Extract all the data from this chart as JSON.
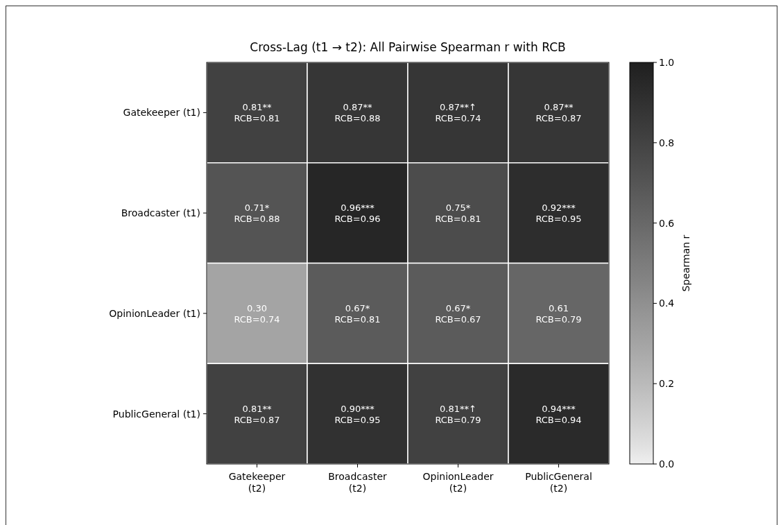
{
  "chart_data": {
    "type": "heatmap",
    "title": "Cross-Lag (t1 → t2): All Pairwise Spearman r with RCB",
    "categories": [
      "Gatekeeper\n(t2)",
      "Broadcaster\n(t2)",
      "OpinionLeader\n(t2)",
      "PublicGeneral\n(t2)"
    ],
    "y_categories": [
      "Gatekeeper (t1)",
      "Broadcaster (t1)",
      "OpinionLeader (t1)",
      "PublicGeneral (t1)"
    ],
    "cells": [
      [
        0.81,
        0.87,
        0.87,
        0.87
      ],
      [
        0.71,
        0.96,
        0.75,
        0.92
      ],
      [
        0.3,
        0.67,
        0.67,
        0.61
      ],
      [
        0.81,
        0.9,
        0.81,
        0.94
      ]
    ],
    "cell_labels": [
      [
        "0.81**\nRCB=0.81",
        "0.87**\nRCB=0.88",
        "0.87**↑\nRCB=0.74",
        "0.87**\nRCB=0.87"
      ],
      [
        "0.71*\nRCB=0.88",
        "0.96***\nRCB=0.96",
        "0.75*\nRCB=0.81",
        "0.92***\nRCB=0.95"
      ],
      [
        "0.30\nRCB=0.74",
        "0.67*\nRCB=0.81",
        "0.67*\nRCB=0.67",
        "0.61\nRCB=0.79"
      ],
      [
        "0.81**\nRCB=0.87",
        "0.90***\nRCB=0.95",
        "0.81**↑\nRCB=0.79",
        "0.94***\nRCB=0.94"
      ]
    ],
    "clim": [
      0,
      1
    ],
    "cticks": [
      {
        "value": 0,
        "label": "0.0"
      },
      {
        "value": 0.2,
        "label": "0.2"
      },
      {
        "value": 0.4,
        "label": "0.4"
      },
      {
        "value": 0.6,
        "label": "0.6"
      },
      {
        "value": 0.8,
        "label": "0.8"
      },
      {
        "value": 1,
        "label": "1.0"
      }
    ],
    "clabel": "Spearman r"
  }
}
